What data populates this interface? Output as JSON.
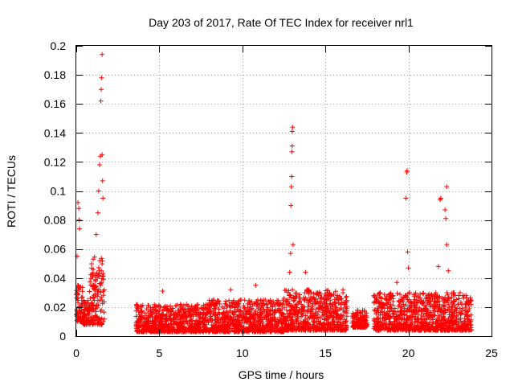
{
  "chart_data": {
    "type": "scatter",
    "title": "Day 203 of 2017, Rate Of TEC Index for receiver nrl1",
    "xlabel": "GPS time / hours",
    "ylabel": "ROTI / TECUs",
    "xlim": [
      0,
      25
    ],
    "ylim": [
      0,
      0.2
    ],
    "xticks": [
      0,
      5,
      10,
      15,
      20,
      25
    ],
    "xtick_labels": [
      "0",
      "5",
      "10",
      "15",
      "20",
      "25"
    ],
    "yticks": [
      0,
      0.02,
      0.04,
      0.06,
      0.08,
      0.1,
      0.12,
      0.14,
      0.16,
      0.18,
      0.2
    ],
    "ytick_labels": [
      "0",
      "0.02",
      "0.04",
      "0.06",
      "0.08",
      "0.1",
      "0.12",
      "0.14",
      "0.16",
      "0.18",
      "0.2"
    ],
    "grid": true,
    "marker": "+",
    "color": "#ff0000",
    "series": [
      {
        "name": "ROTI",
        "segments": [
          {
            "x_start": 0.0,
            "x_end": 0.4,
            "y_min": 0.01,
            "y_max": 0.035
          },
          {
            "x_start": 0.4,
            "x_end": 0.8,
            "y_min": 0.008,
            "y_max": 0.025
          },
          {
            "x_start": 0.8,
            "x_end": 1.7,
            "y_min": 0.008,
            "y_max": 0.055
          },
          {
            "x_start": 3.6,
            "x_end": 8.0,
            "y_min": 0.003,
            "y_max": 0.022
          },
          {
            "x_start": 8.0,
            "x_end": 12.5,
            "y_min": 0.003,
            "y_max": 0.025
          },
          {
            "x_start": 12.5,
            "x_end": 16.3,
            "y_min": 0.004,
            "y_max": 0.032
          },
          {
            "x_start": 16.6,
            "x_end": 17.5,
            "y_min": 0.006,
            "y_max": 0.018
          },
          {
            "x_start": 17.9,
            "x_end": 23.8,
            "y_min": 0.004,
            "y_max": 0.03
          }
        ],
        "peaks": [
          {
            "x": 0.05,
            "y": 0.055
          },
          {
            "x": 0.1,
            "y": 0.092
          },
          {
            "x": 0.15,
            "y": 0.088
          },
          {
            "x": 0.18,
            "y": 0.08
          },
          {
            "x": 0.2,
            "y": 0.074
          },
          {
            "x": 1.2,
            "y": 0.07
          },
          {
            "x": 1.3,
            "y": 0.085
          },
          {
            "x": 1.35,
            "y": 0.1
          },
          {
            "x": 1.4,
            "y": 0.118
          },
          {
            "x": 1.45,
            "y": 0.124
          },
          {
            "x": 1.48,
            "y": 0.162
          },
          {
            "x": 1.5,
            "y": 0.17
          },
          {
            "x": 1.52,
            "y": 0.178
          },
          {
            "x": 1.55,
            "y": 0.194
          },
          {
            "x": 1.55,
            "y": 0.125
          },
          {
            "x": 1.58,
            "y": 0.107
          },
          {
            "x": 1.6,
            "y": 0.095
          },
          {
            "x": 5.2,
            "y": 0.031
          },
          {
            "x": 9.3,
            "y": 0.032
          },
          {
            "x": 10.8,
            "y": 0.035
          },
          {
            "x": 12.85,
            "y": 0.044
          },
          {
            "x": 12.9,
            "y": 0.057
          },
          {
            "x": 12.92,
            "y": 0.09
          },
          {
            "x": 12.95,
            "y": 0.103
          },
          {
            "x": 12.97,
            "y": 0.11
          },
          {
            "x": 12.98,
            "y": 0.127
          },
          {
            "x": 13.0,
            "y": 0.131
          },
          {
            "x": 13.0,
            "y": 0.141
          },
          {
            "x": 13.02,
            "y": 0.144
          },
          {
            "x": 13.05,
            "y": 0.063
          },
          {
            "x": 13.8,
            "y": 0.044
          },
          {
            "x": 19.3,
            "y": 0.037
          },
          {
            "x": 19.85,
            "y": 0.095
          },
          {
            "x": 19.9,
            "y": 0.113
          },
          {
            "x": 19.92,
            "y": 0.114
          },
          {
            "x": 19.95,
            "y": 0.058
          },
          {
            "x": 20.0,
            "y": 0.047
          },
          {
            "x": 21.8,
            "y": 0.048
          },
          {
            "x": 21.9,
            "y": 0.094
          },
          {
            "x": 21.95,
            "y": 0.095
          },
          {
            "x": 22.2,
            "y": 0.087
          },
          {
            "x": 22.25,
            "y": 0.081
          },
          {
            "x": 22.3,
            "y": 0.063
          },
          {
            "x": 22.3,
            "y": 0.103
          },
          {
            "x": 22.4,
            "y": 0.045
          }
        ]
      }
    ]
  }
}
